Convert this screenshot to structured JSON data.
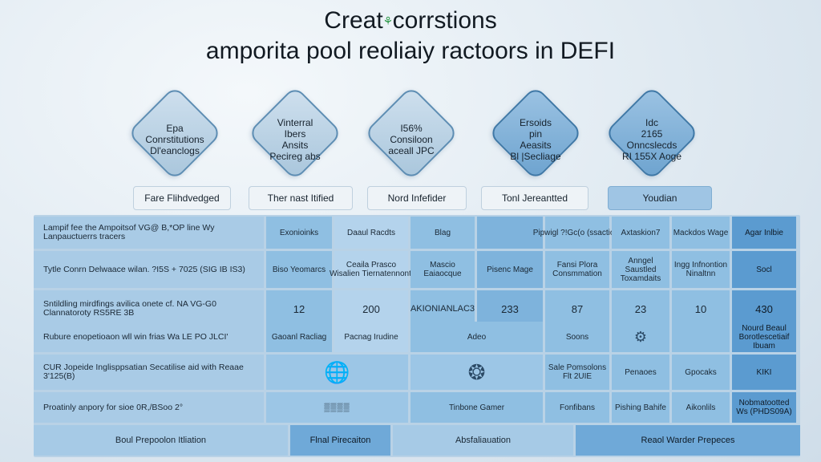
{
  "title": {
    "line1a": "Creat",
    "line1b": "corrstions",
    "line2": "amporita pool reoliaiy ractoors in DEFI"
  },
  "diamonds": [
    {
      "lines": [
        "Epa",
        "Conrstitutions",
        "Dl'eanclogs"
      ]
    },
    {
      "lines": [
        "Vinterral",
        "Ibers",
        "Ansits",
        "Pecireg abs"
      ]
    },
    {
      "lines": [
        "I56%",
        "Consiloon",
        "aceall JPC"
      ]
    },
    {
      "lines": [
        "Ersoids",
        "pin",
        "Aeasits",
        "Bl |Secliage"
      ]
    },
    {
      "lines": [
        "Idc",
        "2165",
        "Onncslecds",
        "RI 155X Aoge"
      ]
    }
  ],
  "pills": [
    "Fare Flihdvedged",
    "Ther nast Itified",
    "Nord Infefider",
    "Tonl Jereantted",
    "Youdian"
  ],
  "rows": [
    {
      "label": "Lampif fee the Ampoitsof VG@ B,*OP line Wy Lanpauctuerrs tracers",
      "cells": [
        "Exonioinks",
        "Daaul Racdts",
        "Blag",
        "",
        "Pipwigl ?!Gc(o (ssaction)",
        "Axtaskion7",
        "Mackdos Wage",
        "Agar Inlbie"
      ]
    },
    {
      "label": "Tytle Conrn Delwaace wilan. ?I5S + 7025 (SIG IB IS3)",
      "cells": [
        "Biso Yeomarcs",
        "Ceaila Prasco Wisalien Tiernatennonti",
        "Mascio Eaiaocque",
        "Pisenc Mage",
        "Fansi Plora Consmmation",
        "Anngel Saustled Toxamdaits",
        "Ingg Infnontion Ninaltnn",
        "Socl"
      ]
    },
    {
      "label": "Sntildling mirdfings avilica onete cf. NA VG-G0 Clannatoroty RS5RE 3B",
      "cells": [
        "12",
        "200",
        "AKIONIANLAC3",
        "233",
        "87",
        "23",
        "10",
        "430"
      ]
    },
    {
      "label": "Rubure enopetioaon wll win frias Wa LE PO JLCI'",
      "cells": [
        "Gaoanl Racliag",
        "Pacnag Irudine",
        "Adeo",
        "",
        "Soons",
        "",
        "",
        "Nourd Beaul Borotlescetiaif Ibuam"
      ]
    },
    {
      "label": "CUR Jopeide Inglisppsatian Secatilise aid with Reaae 3'125(B)",
      "cells": [
        "",
        "",
        "",
        "",
        "Sale Pomsolons Flt 2UIE",
        "Penaoes",
        "Gpocaks",
        "KIKI"
      ]
    },
    {
      "label": "Proatinly anpory for sioe 0R,/BSoo 2°",
      "cells": [
        "",
        "",
        "Tinbone Gamer",
        "",
        "Fonfibans",
        "Pishing Bahife",
        "Aikonlils",
        "Nobmatootted Ws (PHDS09A)"
      ]
    }
  ],
  "footer": [
    "Boul Prepoolon Itliation",
    "Flnal Pirecaiton",
    "Absfaliauation",
    "Reaol Warder Prepeces"
  ]
}
